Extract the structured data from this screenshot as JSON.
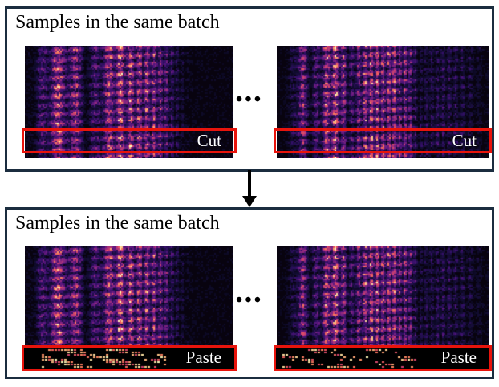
{
  "ellipsis": "•••",
  "panels": [
    {
      "title": "Samples in the same batch",
      "action_label": "Cut"
    },
    {
      "title": "Samples in the same batch",
      "action_label": "Paste"
    }
  ],
  "colors": {
    "panel_border": "#1b2d3f",
    "accent_red": "#e8140c",
    "spectrogram_palette": [
      "#000004",
      "#120d31",
      "#331068",
      "#5a167e",
      "#7d2482",
      "#a3307e",
      "#c83e73",
      "#e95562",
      "#f97c5d",
      "#fea873",
      "#fed395",
      "#fcfdbf"
    ]
  }
}
